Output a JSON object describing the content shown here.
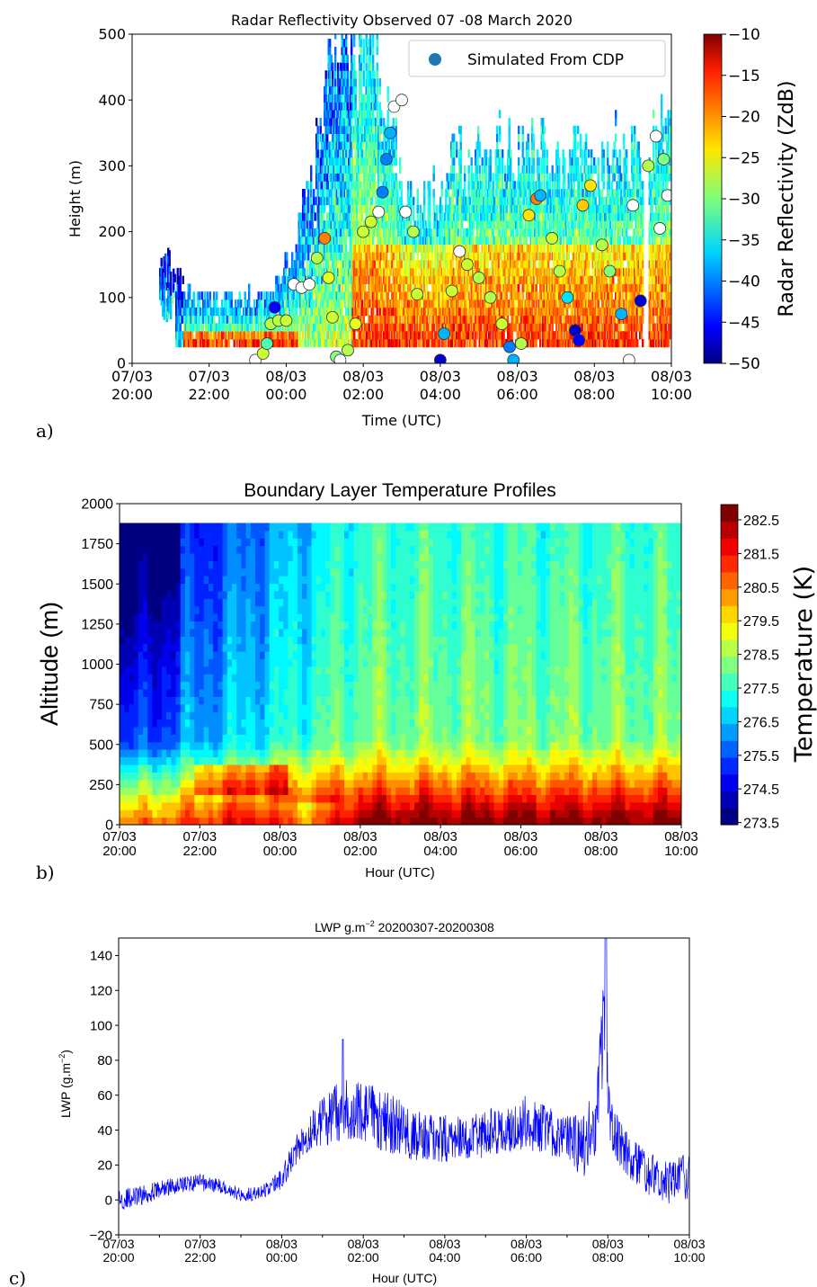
{
  "panel_labels": [
    "a)",
    "b)",
    "c)"
  ],
  "chart_data": [
    {
      "type": "heatmap",
      "title": "Radar Reflectivity Observed 07 -08 March 2020",
      "xlabel": "Time (UTC)",
      "ylabel": "Height (m)",
      "xlim": [
        20,
        34
      ],
      "ylim": [
        0,
        500
      ],
      "x_ticks": [
        {
          "v": 20,
          "l1": "07/03",
          "l2": "20:00"
        },
        {
          "v": 22,
          "l1": "07/03",
          "l2": "22:00"
        },
        {
          "v": 24,
          "l1": "08/03",
          "l2": "00:00"
        },
        {
          "v": 26,
          "l1": "08/03",
          "l2": "02:00"
        },
        {
          "v": 28,
          "l1": "08/03",
          "l2": "04:00"
        },
        {
          "v": 30,
          "l1": "08/03",
          "l2": "06:00"
        },
        {
          "v": 32,
          "l1": "08/03",
          "l2": "08:00"
        },
        {
          "v": 34,
          "l1": "08/03",
          "l2": "10:00"
        }
      ],
      "y_ticks": [
        0,
        100,
        200,
        300,
        400,
        500
      ],
      "legend": {
        "label": "Simulated From CDP",
        "marker_color": "#1f77b4",
        "position": "top-right"
      },
      "colorbar": {
        "label": "Radar Reflectivity (ZdB)",
        "min": -50,
        "max": -10,
        "ticks": [
          "−10",
          "−15",
          "−20",
          "−25",
          "−30",
          "−35",
          "−40",
          "−45",
          "−50"
        ],
        "colormap": "jet"
      },
      "cloud_top_profile": [
        [
          20.7,
          180
        ],
        [
          21.0,
          140
        ],
        [
          21.5,
          100
        ],
        [
          22.0,
          95
        ],
        [
          22.8,
          95
        ],
        [
          23.3,
          95
        ],
        [
          23.8,
          120
        ],
        [
          24.4,
          220
        ],
        [
          24.8,
          350
        ],
        [
          25.0,
          480
        ],
        [
          25.5,
          500
        ],
        [
          26.2,
          470
        ],
        [
          26.7,
          400
        ],
        [
          27.0,
          230
        ],
        [
          27.5,
          250
        ],
        [
          28.0,
          270
        ],
        [
          28.5,
          320
        ],
        [
          29.0,
          310
        ],
        [
          29.5,
          330
        ],
        [
          30.0,
          340
        ],
        [
          30.5,
          330
        ],
        [
          31.0,
          300
        ],
        [
          31.5,
          320
        ],
        [
          32.0,
          300
        ],
        [
          32.5,
          330
        ],
        [
          33.0,
          320
        ],
        [
          33.5,
          360
        ]
      ],
      "cdp_points": [
        {
          "x": 23.2,
          "y": 5,
          "c": null
        },
        {
          "x": 23.4,
          "y": 15,
          "c": -27
        },
        {
          "x": 23.5,
          "y": 30,
          "c": -32
        },
        {
          "x": 23.6,
          "y": 60,
          "c": -28
        },
        {
          "x": 23.7,
          "y": 85,
          "c": -45
        },
        {
          "x": 23.8,
          "y": 65,
          "c": -28
        },
        {
          "x": 24.0,
          "y": 65,
          "c": -27
        },
        {
          "x": 24.2,
          "y": 120,
          "c": null
        },
        {
          "x": 24.4,
          "y": 115,
          "c": null
        },
        {
          "x": 24.6,
          "y": 120,
          "c": null
        },
        {
          "x": 24.8,
          "y": 160,
          "c": -28
        },
        {
          "x": 25.0,
          "y": 190,
          "c": -20
        },
        {
          "x": 25.1,
          "y": 130,
          "c": -26
        },
        {
          "x": 25.2,
          "y": 70,
          "c": -27
        },
        {
          "x": 25.3,
          "y": 10,
          "c": -30
        },
        {
          "x": 25.4,
          "y": 5,
          "c": null
        },
        {
          "x": 25.6,
          "y": 20,
          "c": -28
        },
        {
          "x": 25.8,
          "y": 60,
          "c": -26
        },
        {
          "x": 26.0,
          "y": 200,
          "c": -27
        },
        {
          "x": 26.2,
          "y": 215,
          "c": -27
        },
        {
          "x": 26.4,
          "y": 230,
          "c": null
        },
        {
          "x": 26.5,
          "y": 260,
          "c": -40
        },
        {
          "x": 26.6,
          "y": 310,
          "c": -40
        },
        {
          "x": 26.7,
          "y": 350,
          "c": -38
        },
        {
          "x": 26.8,
          "y": 390,
          "c": null
        },
        {
          "x": 27.0,
          "y": 400,
          "c": null
        },
        {
          "x": 27.1,
          "y": 230,
          "c": null
        },
        {
          "x": 27.3,
          "y": 200,
          "c": -28
        },
        {
          "x": 27.4,
          "y": 105,
          "c": -27
        },
        {
          "x": 28.0,
          "y": 5,
          "c": -47
        },
        {
          "x": 28.1,
          "y": 45,
          "c": -38
        },
        {
          "x": 28.3,
          "y": 110,
          "c": -27
        },
        {
          "x": 28.5,
          "y": 170,
          "c": null
        },
        {
          "x": 28.7,
          "y": 150,
          "c": -27
        },
        {
          "x": 29.0,
          "y": 130,
          "c": -28
        },
        {
          "x": 29.3,
          "y": 100,
          "c": -28
        },
        {
          "x": 29.6,
          "y": 60,
          "c": -27
        },
        {
          "x": 29.8,
          "y": 25,
          "c": -40
        },
        {
          "x": 29.9,
          "y": 5,
          "c": -38
        },
        {
          "x": 30.1,
          "y": 30,
          "c": -28
        },
        {
          "x": 30.3,
          "y": 225,
          "c": -24
        },
        {
          "x": 30.5,
          "y": 250,
          "c": -20
        },
        {
          "x": 30.6,
          "y": 255,
          "c": -38
        },
        {
          "x": 30.9,
          "y": 190,
          "c": -27
        },
        {
          "x": 31.1,
          "y": 140,
          "c": -28
        },
        {
          "x": 31.3,
          "y": 100,
          "c": -36
        },
        {
          "x": 31.5,
          "y": 50,
          "c": -47
        },
        {
          "x": 31.6,
          "y": 35,
          "c": -45
        },
        {
          "x": 31.7,
          "y": 240,
          "c": -23
        },
        {
          "x": 31.9,
          "y": 270,
          "c": -24
        },
        {
          "x": 32.2,
          "y": 180,
          "c": -28
        },
        {
          "x": 32.4,
          "y": 140,
          "c": -30
        },
        {
          "x": 32.7,
          "y": 75,
          "c": -38
        },
        {
          "x": 33.0,
          "y": 240,
          "c": null
        },
        {
          "x": 33.2,
          "y": 95,
          "c": -47
        },
        {
          "x": 33.4,
          "y": 300,
          "c": -28
        },
        {
          "x": 33.6,
          "y": 345,
          "c": null
        },
        {
          "x": 33.8,
          "y": 310,
          "c": -30
        },
        {
          "x": 33.9,
          "y": 255,
          "c": null
        },
        {
          "x": 33.7,
          "y": 205,
          "c": null
        },
        {
          "x": 32.9,
          "y": 5,
          "c": null
        }
      ]
    },
    {
      "type": "heatmap",
      "title": "Boundary Layer Temperature Profiles",
      "xlabel": "Hour (UTC)",
      "ylabel": "Altitude (m)",
      "xlim": [
        20,
        34
      ],
      "ylim": [
        0,
        2000
      ],
      "x_ticks": [
        {
          "v": 20,
          "l1": "07/03",
          "l2": "20:00"
        },
        {
          "v": 22,
          "l1": "07/03",
          "l2": "22:00"
        },
        {
          "v": 24,
          "l1": "08/03",
          "l2": "00:00"
        },
        {
          "v": 26,
          "l1": "08/03",
          "l2": "02:00"
        },
        {
          "v": 28,
          "l1": "08/03",
          "l2": "04:00"
        },
        {
          "v": 30,
          "l1": "08/03",
          "l2": "06:00"
        },
        {
          "v": 32,
          "l1": "08/03",
          "l2": "08:00"
        },
        {
          "v": 34,
          "l1": "08/03",
          "l2": "10:00"
        }
      ],
      "y_ticks": [
        0,
        250,
        500,
        750,
        1000,
        1250,
        1500,
        1750,
        2000
      ],
      "data_top": 1880,
      "colorbar": {
        "label": "Temperature (K)",
        "min": 273.5,
        "max": 283,
        "ticks": [
          "282.5",
          "281.5",
          "280.5",
          "279.5",
          "278.5",
          "277.5",
          "276.5",
          "275.5",
          "274.5",
          "273.5"
        ],
        "colormap": "jet"
      }
    },
    {
      "type": "line",
      "title": "LWP g.m⁻²   20200307-20200308",
      "title_main": "LWP g.m",
      "title_sup": "−2",
      "title_rest": "   20200307-20200308",
      "xlabel": "Hour (UTC)",
      "ylabel": "LWP (g.m⁻²)",
      "ylabel_main": "LWP (g.m",
      "ylabel_sup": "−2",
      "ylabel_end": ")",
      "xlim": [
        20,
        34
      ],
      "ylim": [
        -20,
        150
      ],
      "x_ticks": [
        {
          "v": 20,
          "l1": "07/03",
          "l2": "20:00"
        },
        {
          "v": 22,
          "l1": "07/03",
          "l2": "22:00"
        },
        {
          "v": 24,
          "l1": "08/03",
          "l2": "00:00"
        },
        {
          "v": 26,
          "l1": "08/03",
          "l2": "02:00"
        },
        {
          "v": 28,
          "l1": "08/03",
          "l2": "04:00"
        },
        {
          "v": 30,
          "l1": "08/03",
          "l2": "06:00"
        },
        {
          "v": 32,
          "l1": "08/03",
          "l2": "08:00"
        },
        {
          "v": 34,
          "l1": "08/03",
          "l2": "10:00"
        }
      ],
      "y_ticks": [
        -20,
        0,
        20,
        40,
        60,
        80,
        100,
        120,
        140
      ],
      "line_color": "#0000ff",
      "series_envelope": [
        {
          "x": 20.0,
          "y": 0,
          "a": 6
        },
        {
          "x": 20.5,
          "y": 2,
          "a": 6
        },
        {
          "x": 21.0,
          "y": 6,
          "a": 5
        },
        {
          "x": 21.5,
          "y": 9,
          "a": 5
        },
        {
          "x": 22.0,
          "y": 10,
          "a": 5
        },
        {
          "x": 22.5,
          "y": 8,
          "a": 4
        },
        {
          "x": 23.0,
          "y": 3,
          "a": 4
        },
        {
          "x": 23.5,
          "y": 4,
          "a": 4
        },
        {
          "x": 24.0,
          "y": 12,
          "a": 6
        },
        {
          "x": 24.5,
          "y": 35,
          "a": 10
        },
        {
          "x": 25.0,
          "y": 45,
          "a": 15
        },
        {
          "x": 25.5,
          "y": 52,
          "a": 18
        },
        {
          "x": 26.0,
          "y": 50,
          "a": 18
        },
        {
          "x": 26.5,
          "y": 45,
          "a": 18
        },
        {
          "x": 27.0,
          "y": 40,
          "a": 16
        },
        {
          "x": 27.5,
          "y": 35,
          "a": 14
        },
        {
          "x": 28.0,
          "y": 35,
          "a": 14
        },
        {
          "x": 28.5,
          "y": 35,
          "a": 12
        },
        {
          "x": 29.0,
          "y": 38,
          "a": 14
        },
        {
          "x": 29.5,
          "y": 40,
          "a": 14
        },
        {
          "x": 30.0,
          "y": 45,
          "a": 16
        },
        {
          "x": 30.5,
          "y": 40,
          "a": 14
        },
        {
          "x": 31.0,
          "y": 35,
          "a": 14
        },
        {
          "x": 31.4,
          "y": 30,
          "a": 18
        },
        {
          "x": 31.7,
          "y": 45,
          "a": 25
        },
        {
          "x": 31.9,
          "y": 100,
          "a": 30
        },
        {
          "x": 32.1,
          "y": 40,
          "a": 15
        },
        {
          "x": 32.5,
          "y": 25,
          "a": 12
        },
        {
          "x": 33.0,
          "y": 15,
          "a": 12
        },
        {
          "x": 33.5,
          "y": 10,
          "a": 12
        },
        {
          "x": 34.0,
          "y": 15,
          "a": 15
        }
      ],
      "notable_values": {
        "max_peak": 150,
        "max_peak_time": 31.95,
        "peak_near_0130": 92
      }
    }
  ]
}
